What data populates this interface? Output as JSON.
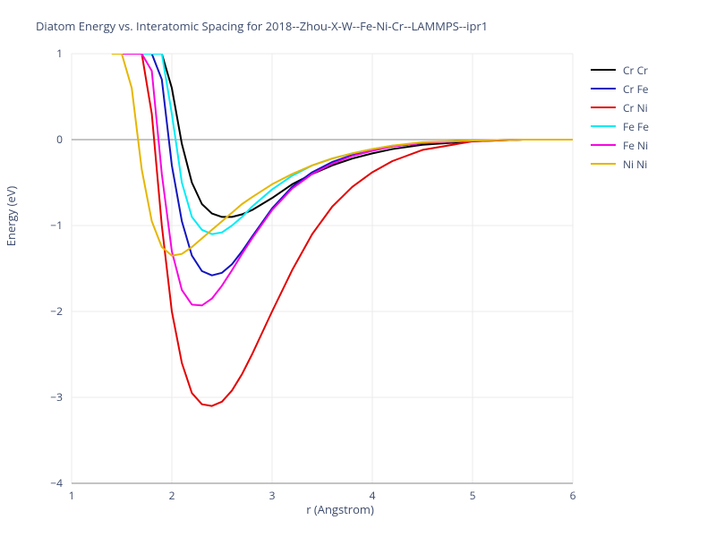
{
  "chart": {
    "type": "line",
    "title": "Diatom Energy vs. Interatomic Spacing for 2018--Zhou-X-W--Fe-Ni-Cr--LAMMPS--ipr1",
    "xlabel": "r (Angstrom)",
    "ylabel": "Energy (eV)",
    "title_fontsize": 13,
    "label_fontsize": 13,
    "tick_fontsize": 12,
    "title_color": "#3c4b6c",
    "label_color": "#3c4b6c",
    "background_color": "#ffffff",
    "grid_color": "#ebebeb",
    "axis_line_color": "#888888",
    "zero_line_color": "#888888",
    "xlim": [
      1,
      6
    ],
    "ylim": [
      -4,
      1
    ],
    "xtick_step": 1,
    "ytick_step": 1,
    "xticks": [
      1,
      2,
      3,
      4,
      5,
      6
    ],
    "yticks": [
      -4,
      -3,
      -2,
      -1,
      0,
      1
    ],
    "line_width": 2,
    "series": [
      {
        "name": "Cr Cr",
        "color": "#000000",
        "x": [
          1.55,
          1.6,
          1.7,
          1.8,
          1.9,
          2.0,
          2.1,
          2.2,
          2.3,
          2.4,
          2.5,
          2.6,
          2.7,
          2.8,
          3.0,
          3.2,
          3.4,
          3.6,
          3.8,
          4.0,
          4.2,
          4.5,
          5.0,
          5.5,
          6.0
        ],
        "y": [
          1.0,
          1.0,
          1.0,
          1.0,
          1.0,
          0.6,
          -0.05,
          -0.5,
          -0.75,
          -0.86,
          -0.9,
          -0.9,
          -0.87,
          -0.82,
          -0.68,
          -0.52,
          -0.4,
          -0.3,
          -0.22,
          -0.16,
          -0.11,
          -0.06,
          -0.02,
          0.0,
          0.0
        ]
      },
      {
        "name": "Cr Fe",
        "color": "#1215bf",
        "x": [
          1.5,
          1.55,
          1.6,
          1.7,
          1.8,
          1.9,
          2.0,
          2.1,
          2.2,
          2.3,
          2.4,
          2.5,
          2.6,
          2.7,
          2.8,
          3.0,
          3.2,
          3.4,
          3.6,
          3.8,
          4.0,
          4.2,
          4.5,
          5.0,
          5.5,
          6.0
        ],
        "y": [
          1.0,
          1.0,
          1.0,
          1.0,
          1.0,
          0.7,
          -0.3,
          -0.95,
          -1.35,
          -1.53,
          -1.58,
          -1.55,
          -1.45,
          -1.3,
          -1.13,
          -0.8,
          -0.55,
          -0.38,
          -0.26,
          -0.18,
          -0.12,
          -0.08,
          -0.04,
          -0.01,
          0.0,
          0.0
        ]
      },
      {
        "name": "Cr Ni",
        "color": "#e40202",
        "x": [
          1.55,
          1.6,
          1.7,
          1.8,
          1.9,
          2.0,
          2.1,
          2.2,
          2.3,
          2.4,
          2.5,
          2.6,
          2.7,
          2.8,
          2.9,
          3.0,
          3.2,
          3.4,
          3.6,
          3.8,
          4.0,
          4.2,
          4.5,
          5.0,
          5.5,
          6.0
        ],
        "y": [
          1.0,
          1.0,
          1.0,
          0.3,
          -1.0,
          -2.0,
          -2.6,
          -2.95,
          -3.08,
          -3.1,
          -3.05,
          -2.92,
          -2.73,
          -2.5,
          -2.25,
          -2.0,
          -1.52,
          -1.1,
          -0.78,
          -0.55,
          -0.38,
          -0.25,
          -0.12,
          -0.02,
          0.0,
          0.0
        ]
      },
      {
        "name": "Fe Fe",
        "color": "#00ecf7",
        "x": [
          1.55,
          1.6,
          1.7,
          1.8,
          1.9,
          2.0,
          2.1,
          2.2,
          2.3,
          2.4,
          2.5,
          2.6,
          2.7,
          2.8,
          3.0,
          3.2,
          3.4,
          3.6,
          3.8,
          4.0,
          4.2,
          4.5,
          5.0,
          5.5,
          6.0
        ],
        "y": [
          1.0,
          1.0,
          1.0,
          1.0,
          1.0,
          0.3,
          -0.5,
          -0.9,
          -1.05,
          -1.1,
          -1.08,
          -1.0,
          -0.9,
          -0.78,
          -0.58,
          -0.42,
          -0.3,
          -0.22,
          -0.16,
          -0.11,
          -0.07,
          -0.04,
          -0.01,
          0.0,
          0.0
        ]
      },
      {
        "name": "Fe Ni",
        "color": "#f706e0",
        "x": [
          1.5,
          1.55,
          1.6,
          1.7,
          1.8,
          1.9,
          2.0,
          2.1,
          2.2,
          2.3,
          2.4,
          2.5,
          2.6,
          2.7,
          2.8,
          3.0,
          3.2,
          3.4,
          3.6,
          3.8,
          4.0,
          4.2,
          4.5,
          5.0,
          5.5,
          6.0
        ],
        "y": [
          1.0,
          1.0,
          1.0,
          1.0,
          0.8,
          -0.4,
          -1.3,
          -1.75,
          -1.92,
          -1.93,
          -1.85,
          -1.7,
          -1.52,
          -1.33,
          -1.15,
          -0.82,
          -0.57,
          -0.4,
          -0.28,
          -0.19,
          -0.13,
          -0.08,
          -0.04,
          -0.01,
          0.0,
          0.0
        ]
      },
      {
        "name": "Ni Ni",
        "color": "#e6b600",
        "x": [
          1.4,
          1.5,
          1.6,
          1.7,
          1.8,
          1.9,
          2.0,
          2.1,
          2.2,
          2.3,
          2.4,
          2.5,
          2.6,
          2.7,
          2.8,
          3.0,
          3.2,
          3.4,
          3.6,
          3.8,
          4.0,
          4.2,
          4.5,
          5.0,
          5.5,
          6.0
        ],
        "y": [
          1.0,
          1.0,
          0.6,
          -0.35,
          -0.95,
          -1.25,
          -1.35,
          -1.33,
          -1.25,
          -1.15,
          -1.05,
          -0.95,
          -0.85,
          -0.75,
          -0.67,
          -0.52,
          -0.4,
          -0.3,
          -0.22,
          -0.16,
          -0.11,
          -0.07,
          -0.03,
          -0.01,
          0.0,
          0.0
        ]
      }
    ],
    "legend_position": "right"
  }
}
